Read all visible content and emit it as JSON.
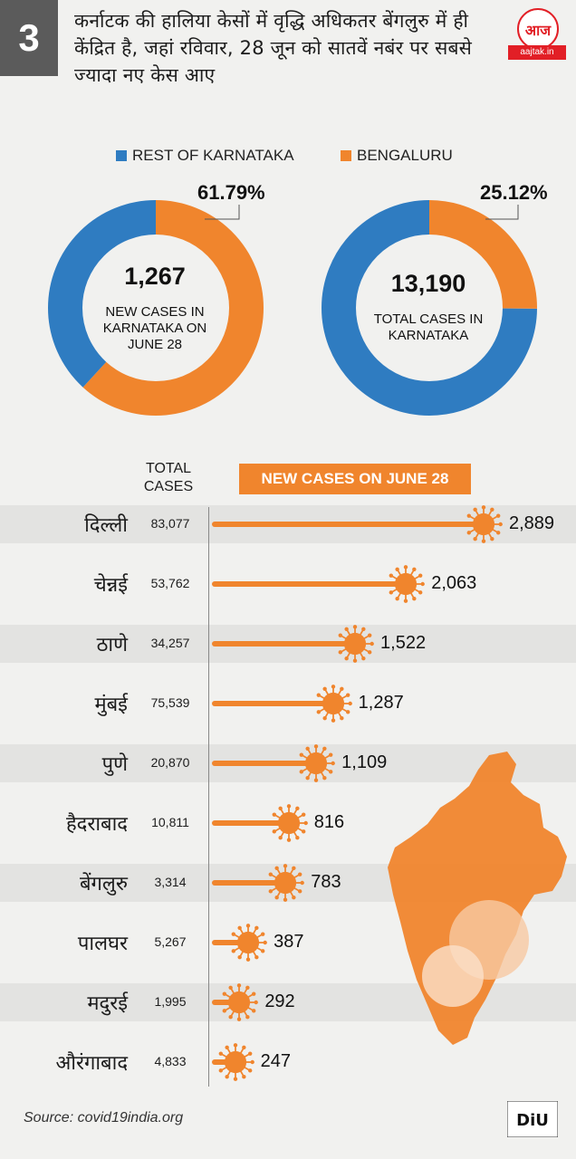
{
  "header": {
    "number": "3",
    "headline": "कर्नाटक की हालिया केसों में वृद्धि अधिकतर बेंगलुरु में ही केंद्रित है, जहां रविवार, 28 जून को सातवें नबंर पर सबसे ज्यादा नए केस आए",
    "logo_text": "आज तक",
    "logo_url": "aajtak.in"
  },
  "colors": {
    "rest_of_karnataka": "#2f7cc1",
    "bengaluru": "#f0852d",
    "badge": "#5b5b5b"
  },
  "legend": [
    {
      "label": "REST OF KARNATAKA",
      "color": "#2f7cc1"
    },
    {
      "label": "BENGALURU",
      "color": "#f0852d"
    }
  ],
  "chart_data": [
    {
      "type": "pie",
      "variant": "donut",
      "center_value": "1,267",
      "center_label": "NEW CASES IN KARNATAKA ON JUNE 28",
      "slices": [
        {
          "name": "BENGALURU",
          "value": 61.79,
          "label": "61.79%"
        },
        {
          "name": "REST OF KARNATAKA",
          "value": 38.21
        }
      ]
    },
    {
      "type": "pie",
      "variant": "donut",
      "center_value": "13,190",
      "center_label": "TOTAL CASES IN KARNATAKA",
      "slices": [
        {
          "name": "BENGALURU",
          "value": 25.12,
          "label": "25.12%"
        },
        {
          "name": "REST OF KARNATAKA",
          "value": 74.88
        }
      ]
    },
    {
      "type": "bar",
      "orientation": "horizontal",
      "column_headers": {
        "total": "TOTAL CASES",
        "new": "NEW CASES ON  JUNE 28"
      },
      "categories": [
        "दिल्ली",
        "चेन्नई",
        "ठाणे",
        "मुंबई",
        "पुणे",
        "हैदराबाद",
        "बेंगलुरु",
        "पालघर",
        "मदुरई",
        "औरंगाबाद"
      ],
      "total_cases": [
        "83,077",
        "53,762",
        "34,257",
        "75,539",
        "20,870",
        "10,811",
        "3,314",
        "5,267",
        "1,995",
        "4,833"
      ],
      "values": [
        2889,
        2063,
        1522,
        1287,
        1109,
        816,
        783,
        387,
        292,
        247
      ],
      "value_labels": [
        "2,889",
        "2,063",
        "1,522",
        "1,287",
        "1,109",
        "816",
        "783",
        "387",
        "292",
        "247"
      ]
    }
  ],
  "footer": {
    "source": "Source: covid19india.org",
    "brand": "DiU"
  }
}
